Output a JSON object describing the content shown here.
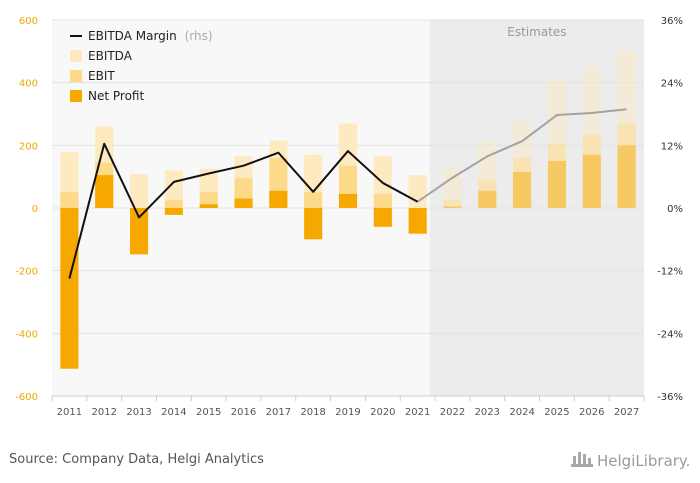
{
  "chart_data": {
    "type": "bar",
    "categories": [
      "2011",
      "2012",
      "2013",
      "2014",
      "2015",
      "2016",
      "2017",
      "2018",
      "2019",
      "2020",
      "2021",
      "2022",
      "2023",
      "2024",
      "2025",
      "2026",
      "2027"
    ],
    "estimate_start": "2022",
    "series": [
      {
        "name": "EBITDA",
        "kind": "bar",
        "axis": "left",
        "color": "#fdeac0",
        "values": [
          178,
          260,
          108,
          120,
          125,
          165,
          215,
          170,
          270,
          165,
          105,
          130,
          210,
          280,
          410,
          450,
          500
        ]
      },
      {
        "name": "EBIT",
        "kind": "bar",
        "axis": "left",
        "color": "#fdd98a",
        "values": [
          50,
          145,
          0,
          25,
          50,
          95,
          160,
          50,
          135,
          45,
          -5,
          25,
          90,
          160,
          205,
          235,
          270
        ]
      },
      {
        "name": "Net Profit",
        "kind": "bar",
        "axis": "left",
        "color": "#f7a800",
        "values": [
          -513,
          105,
          -148,
          -22,
          12,
          30,
          55,
          -100,
          45,
          -60,
          -82,
          5,
          55,
          115,
          150,
          170,
          200
        ]
      },
      {
        "name": "EBITDA Margin",
        "kind": "line",
        "axis": "right",
        "color": "#111111",
        "estimate_color": "#a3a3a3",
        "values": [
          -13.5,
          12.3,
          -1.8,
          5.0,
          6.6,
          8.1,
          10.6,
          3.1,
          10.9,
          4.8,
          1.2,
          5.8,
          9.9,
          12.8,
          17.8,
          18.2,
          18.9
        ]
      }
    ],
    "yleft": {
      "min": -600,
      "max": 600,
      "ticks": [
        -600,
        -400,
        -200,
        0,
        200,
        400,
        600
      ],
      "color": "#f2a900"
    },
    "yright": {
      "min": -36,
      "max": 36,
      "ticks": [
        -36,
        -24,
        -12,
        0,
        12,
        24,
        36
      ],
      "suffix": "%"
    },
    "grid": true,
    "legend_position": "top-left",
    "estimates_label": "Estimates"
  },
  "legend": {
    "items": [
      {
        "label": "EBITDA Margin",
        "sub": "(rhs)",
        "color": "#111111",
        "kind": "line"
      },
      {
        "label": "EBITDA",
        "sub": "",
        "color": "#fdeac0",
        "kind": "box"
      },
      {
        "label": "EBIT",
        "sub": "",
        "color": "#fdd98a",
        "kind": "box"
      },
      {
        "label": "Net Profit",
        "sub": "",
        "color": "#f7a800",
        "kind": "box"
      }
    ]
  },
  "footer": {
    "source": "Source: Company Data, Helgi Analytics",
    "brand": "HelgiLibrary."
  }
}
